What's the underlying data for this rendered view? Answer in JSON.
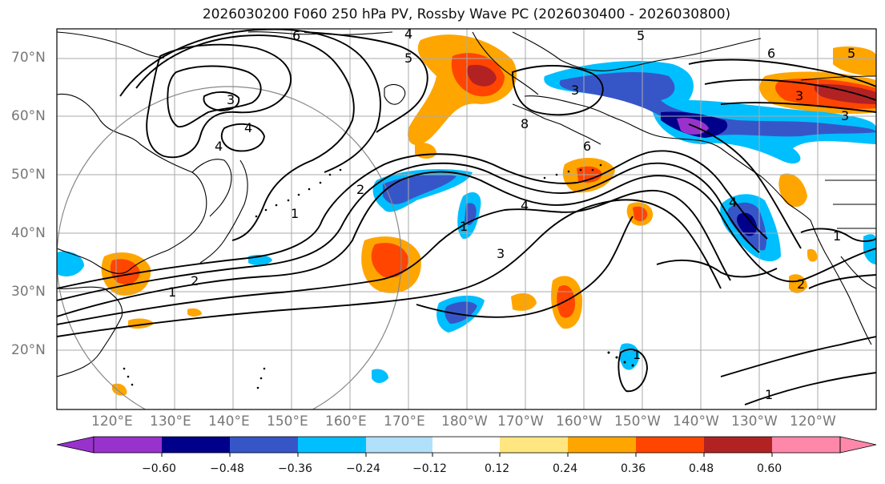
{
  "title": "2026030200 F060 250 hPa PV, Rossby Wave PC (2026030400 - 2026030800)",
  "latitude_labels": [
    "70°N",
    "60°N",
    "50°N",
    "40°N",
    "30°N",
    "20°N"
  ],
  "longitude_labels": [
    "120°E",
    "130°E",
    "140°E",
    "150°E",
    "160°E",
    "170°E",
    "180°W",
    "170°W",
    "160°W",
    "150°W",
    "140°W",
    "130°W",
    "120°W"
  ],
  "colorbar": {
    "ticks": [
      "−0.60",
      "−0.48",
      "−0.36",
      "−0.24",
      "−0.12",
      "0.12",
      "0.24",
      "0.36",
      "0.48",
      "0.60"
    ],
    "colors": [
      "#9932cc",
      "#00008b",
      "#3656c8",
      "#00bfff",
      "#b0e0fa",
      "#ffffff",
      "#ffe680",
      "#ffa500",
      "#ff4500",
      "#b22222",
      "#ff88aa"
    ]
  },
  "contour_labels": [
    "6",
    "5",
    "4",
    "3",
    "4",
    "5",
    "3",
    "4",
    "3",
    "2",
    "1",
    "1",
    "2",
    "3",
    "4",
    "6",
    "5",
    "3",
    "1",
    "1",
    "1",
    "1",
    "2",
    "8",
    "4",
    "6"
  ]
}
